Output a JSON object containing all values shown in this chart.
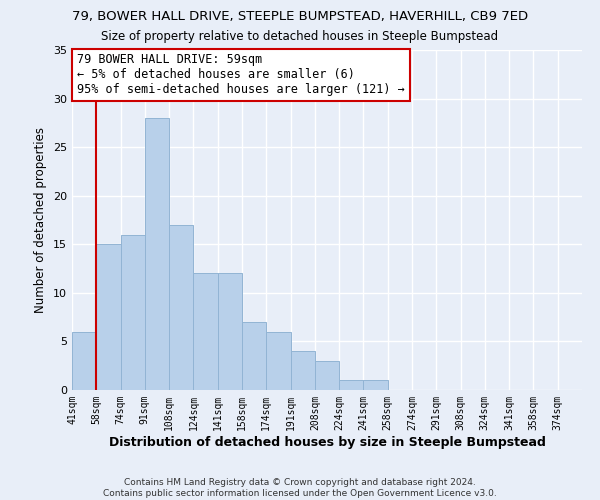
{
  "title": "79, BOWER HALL DRIVE, STEEPLE BUMPSTEAD, HAVERHILL, CB9 7ED",
  "subtitle": "Size of property relative to detached houses in Steeple Bumpstead",
  "xlabel": "Distribution of detached houses by size in Steeple Bumpstead",
  "ylabel": "Number of detached properties",
  "bin_labels": [
    "41sqm",
    "58sqm",
    "74sqm",
    "91sqm",
    "108sqm",
    "124sqm",
    "141sqm",
    "158sqm",
    "174sqm",
    "191sqm",
    "208sqm",
    "224sqm",
    "241sqm",
    "258sqm",
    "274sqm",
    "291sqm",
    "308sqm",
    "324sqm",
    "341sqm",
    "358sqm",
    "374sqm"
  ],
  "bar_values": [
    6,
    15,
    16,
    28,
    17,
    12,
    12,
    7,
    6,
    4,
    3,
    1,
    1,
    0,
    0,
    0,
    0,
    0,
    0,
    0
  ],
  "bar_color": "#b8d0ea",
  "bar_edge_color": "#92b4d4",
  "vline_x": 1,
  "vline_color": "#cc0000",
  "ylim": [
    0,
    35
  ],
  "yticks": [
    0,
    5,
    10,
    15,
    20,
    25,
    30,
    35
  ],
  "annotation_line1": "79 BOWER HALL DRIVE: 59sqm",
  "annotation_line2": "← 5% of detached houses are smaller (6)",
  "annotation_line3": "95% of semi-detached houses are larger (121) →",
  "annotation_box_color": "#cc0000",
  "footer1": "Contains HM Land Registry data © Crown copyright and database right 2024.",
  "footer2": "Contains public sector information licensed under the Open Government Licence v3.0.",
  "background_color": "#e8eef8"
}
